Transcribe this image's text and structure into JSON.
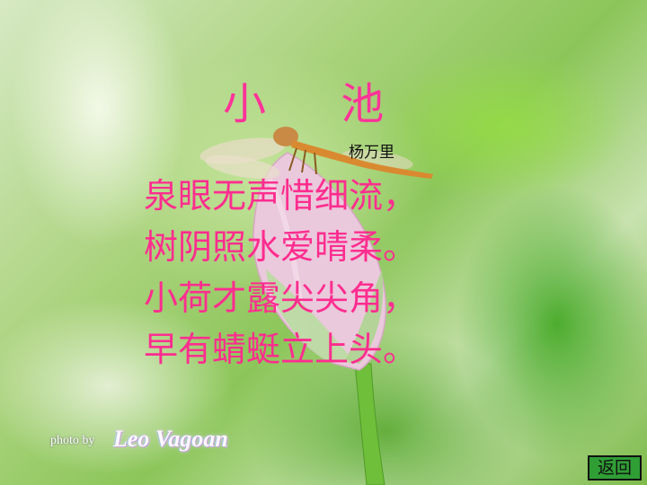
{
  "poem": {
    "title": "小 池",
    "author": "杨万里",
    "lines": [
      "泉眼无声惜细流，",
      "树阴照水爱晴柔。",
      "小荷才露尖尖角，",
      "早有蜻蜓立上头。"
    ]
  },
  "photo_credit": {
    "prefix": "photo by",
    "signature": "Leo Vagoan"
  },
  "nav": {
    "back_label": "返回"
  },
  "colors": {
    "title": "#ff3399",
    "poem_text": "#ff2d8f",
    "back_button": "#2f9e35"
  }
}
